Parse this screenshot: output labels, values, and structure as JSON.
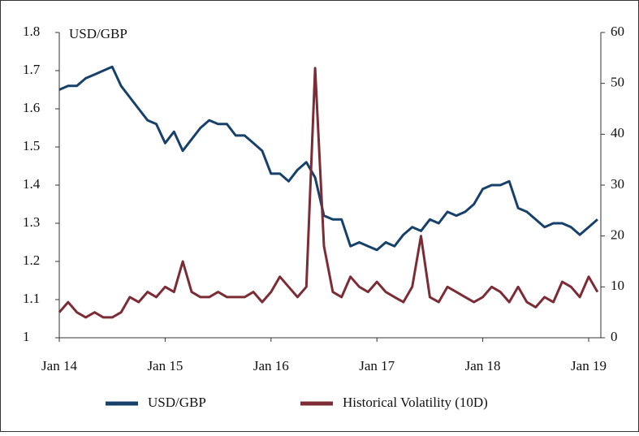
{
  "chart_data": {
    "type": "line",
    "y_label": "USD/GBP",
    "categories": [
      "Jan 14",
      null,
      null,
      null,
      null,
      null,
      null,
      null,
      null,
      null,
      null,
      null,
      "Jan 15",
      null,
      null,
      null,
      null,
      null,
      null,
      null,
      null,
      null,
      null,
      null,
      "Jan 16",
      null,
      null,
      null,
      null,
      null,
      null,
      null,
      null,
      null,
      null,
      null,
      "Jan 17",
      null,
      null,
      null,
      null,
      null,
      null,
      null,
      null,
      null,
      null,
      null,
      "Jan 18",
      null,
      null,
      null,
      null,
      null,
      null,
      null,
      null,
      null,
      null,
      null,
      "Jan 19",
      null
    ],
    "series": [
      {
        "name": "USD/GBP",
        "color": "#17406a",
        "axis": "y",
        "values": [
          1.65,
          1.66,
          1.66,
          1.68,
          1.69,
          1.7,
          1.71,
          1.66,
          1.63,
          1.6,
          1.57,
          1.56,
          1.51,
          1.54,
          1.49,
          1.52,
          1.55,
          1.57,
          1.56,
          1.56,
          1.53,
          1.53,
          1.51,
          1.49,
          1.43,
          1.43,
          1.41,
          1.44,
          1.46,
          1.42,
          1.32,
          1.31,
          1.31,
          1.24,
          1.25,
          1.24,
          1.23,
          1.25,
          1.24,
          1.27,
          1.29,
          1.28,
          1.31,
          1.3,
          1.33,
          1.32,
          1.33,
          1.35,
          1.39,
          1.4,
          1.4,
          1.41,
          1.34,
          1.33,
          1.31,
          1.29,
          1.3,
          1.3,
          1.29,
          1.27,
          1.29,
          1.31
        ]
      },
      {
        "name": "Historical Volatility (10D)",
        "color": "#7b2c35",
        "axis": "y2",
        "values": [
          5,
          7,
          5,
          4,
          5,
          4,
          4,
          5,
          8,
          7,
          9,
          8,
          10,
          9,
          15,
          9,
          8,
          8,
          9,
          8,
          8,
          8,
          9,
          7,
          9,
          12,
          10,
          8,
          10,
          53,
          18,
          9,
          8,
          12,
          10,
          9,
          11,
          9,
          8,
          7,
          10,
          20,
          8,
          7,
          10,
          9,
          8,
          7,
          8,
          10,
          9,
          7,
          10,
          7,
          6,
          8,
          7,
          11,
          10,
          8,
          12,
          9
        ]
      }
    ],
    "ylim": [
      1,
      1.8
    ],
    "yticks": [
      1,
      1.1,
      1.2,
      1.3,
      1.4,
      1.5,
      1.6,
      1.7,
      1.8
    ],
    "y2lim": [
      0,
      60
    ],
    "y2ticks": [
      0,
      10,
      20,
      30,
      40,
      50,
      60
    ],
    "legend": "bottom"
  }
}
